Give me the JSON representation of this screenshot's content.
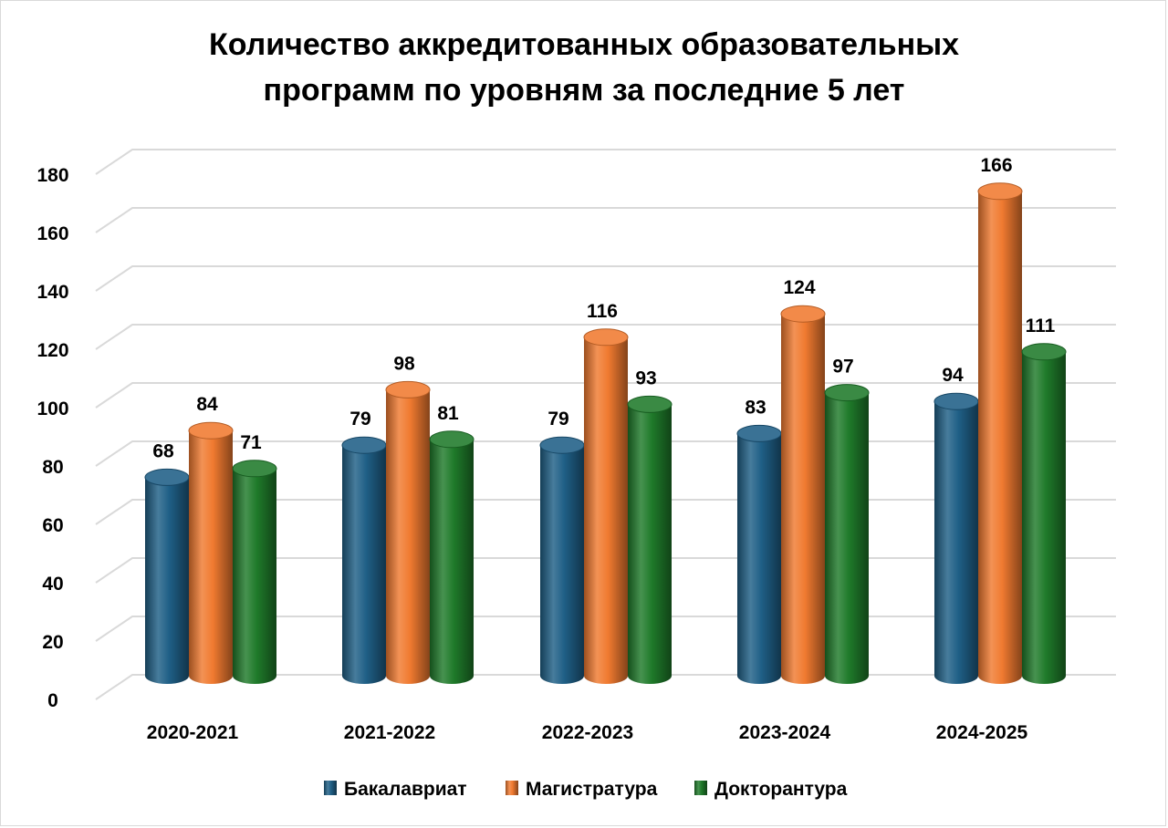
{
  "chart_data": {
    "type": "bar",
    "title_lines": [
      "Количество аккредитованных образовательных",
      "программ по уровням за последние 5 лет"
    ],
    "categories": [
      "2020-2021",
      "2021-2022",
      "2022-2023",
      "2023-2024",
      "2024-2025"
    ],
    "series": [
      {
        "name": "Бакалавриат",
        "values": [
          68,
          79,
          79,
          83,
          94
        ],
        "color": "#1f5f86"
      },
      {
        "name": "Магистратура",
        "values": [
          84,
          98,
          116,
          124,
          166
        ],
        "color": "#f07a30"
      },
      {
        "name": "Докторантура",
        "values": [
          71,
          81,
          93,
          97,
          111
        ],
        "color": "#1f7a2a"
      }
    ],
    "ylim": [
      0,
      180
    ],
    "yticks": [
      "0",
      "20",
      "40",
      "60",
      "80",
      "100",
      "120",
      "140",
      "160",
      "180"
    ],
    "grid": true,
    "legend_position": "bottom",
    "style": "3d-cylinder"
  }
}
